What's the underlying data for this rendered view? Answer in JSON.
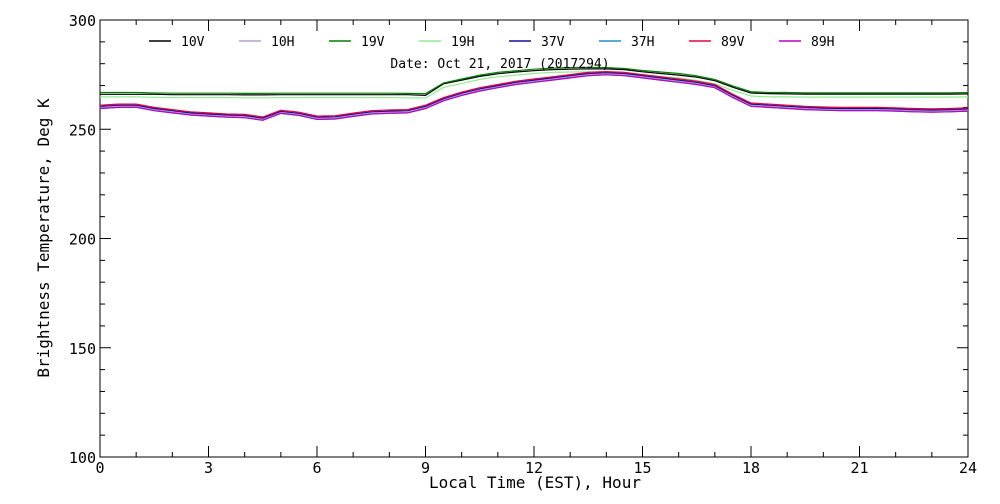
{
  "chart_data": {
    "type": "line",
    "title": "Date: Oct 21, 2017 (2017294)",
    "xlabel": "Local Time (EST), Hour",
    "ylabel": "Brightness Temperature, Deg K",
    "xlim": [
      0,
      24
    ],
    "ylim": [
      100,
      300
    ],
    "x_major_ticks": [
      0,
      3,
      6,
      9,
      12,
      15,
      18,
      21,
      24
    ],
    "y_major_ticks": [
      100,
      150,
      200,
      250,
      300
    ],
    "grid": false,
    "legend_position": "top",
    "x": [
      0,
      0.5,
      1,
      1.5,
      2,
      2.5,
      3,
      3.5,
      4,
      4.5,
      5,
      5.5,
      6,
      6.5,
      7,
      7.5,
      8,
      8.5,
      9,
      9.5,
      10,
      10.5,
      11,
      11.5,
      12,
      12.5,
      13,
      13.5,
      14,
      14.5,
      15,
      15.5,
      16,
      16.5,
      17,
      17.5,
      18,
      18.5,
      19,
      19.5,
      20,
      20.5,
      21,
      21.5,
      22,
      22.5,
      23,
      23.5,
      24
    ],
    "series": [
      {
        "name": "10V",
        "color": "#000000",
        "values": [
          266,
          266,
          266,
          266,
          265.8,
          265.8,
          265.8,
          265.8,
          265.7,
          265.7,
          265.8,
          265.8,
          265.8,
          265.8,
          265.8,
          265.8,
          265.8,
          265.8,
          265.5,
          270.8,
          272.5,
          274.2,
          275.4,
          276.2,
          276.8,
          277.3,
          277.5,
          277.6,
          277.6,
          277.3,
          276.3,
          275.5,
          274.8,
          273.8,
          272.2,
          269.2,
          266.6,
          266.3,
          266.2,
          266.1,
          266.1,
          266.1,
          266.1,
          266.1,
          266.1,
          266.1,
          266.1,
          266.1,
          266.2
        ]
      },
      {
        "name": "10H",
        "color": "#b0a2c8",
        "values": [
          260,
          260.6,
          260.6,
          259,
          258,
          257,
          256.5,
          256,
          255.8,
          254.6,
          257.8,
          256.9,
          255,
          255.2,
          256.4,
          257.5,
          257.8,
          258,
          260,
          263.5,
          266,
          268,
          269.5,
          271,
          272,
          273,
          274,
          275,
          275.4,
          275,
          274,
          273,
          272,
          271,
          269.5,
          265,
          261,
          260.5,
          260,
          259.5,
          259.2,
          259,
          259,
          259,
          258.8,
          258.5,
          258.3,
          258.5,
          258.8
        ]
      },
      {
        "name": "19V",
        "color": "#008000",
        "values": [
          266.8,
          266.8,
          266.8,
          266.6,
          266.5,
          266.5,
          266.5,
          266.5,
          266.4,
          266.4,
          266.5,
          266.5,
          266.5,
          266.5,
          266.5,
          266.5,
          266.5,
          266.4,
          266.3,
          271.2,
          273,
          274.8,
          276,
          276.8,
          277.5,
          278,
          278.2,
          278.3,
          278.2,
          277.8,
          276.9,
          276.2,
          275.5,
          274.4,
          272.8,
          269.8,
          267.2,
          266.8,
          266.8,
          266.7,
          266.7,
          266.7,
          266.7,
          266.7,
          266.7,
          266.7,
          266.7,
          266.7,
          266.8
        ]
      },
      {
        "name": "19H",
        "color": "#90ee90",
        "values": [
          264.8,
          264.8,
          264.8,
          264.6,
          264.5,
          264.5,
          264.5,
          264.5,
          264.4,
          264.4,
          264.5,
          264.5,
          264.5,
          264.5,
          264.5,
          264.5,
          264.5,
          264.4,
          264.3,
          269.2,
          271,
          272.8,
          274,
          274.8,
          275.5,
          276,
          276.2,
          276.3,
          276.2,
          275.8,
          274.9,
          274.2,
          273.5,
          272.4,
          270.8,
          267.8,
          265.2,
          264.8,
          264.8,
          264.7,
          264.7,
          264.7,
          264.7,
          264.7,
          264.7,
          264.7,
          264.7,
          264.7,
          264.8
        ]
      },
      {
        "name": "37V",
        "color": "#1a0aa0",
        "values": [
          260.5,
          261,
          261,
          259.5,
          258.5,
          257.5,
          257,
          256.5,
          256.3,
          255.1,
          258.2,
          257.3,
          255.5,
          255.7,
          256.9,
          258,
          258.3,
          258.5,
          260.5,
          264,
          266.5,
          268.5,
          270,
          271.5,
          272.5,
          273.5,
          274.5,
          275.5,
          275.9,
          275.5,
          274.5,
          273.5,
          272.5,
          271.5,
          270,
          265.5,
          261.5,
          261,
          260.5,
          260,
          259.7,
          259.5,
          259.5,
          259.5,
          259.3,
          259,
          258.8,
          259,
          259.3
        ]
      },
      {
        "name": "37H",
        "color": "#1e90c8",
        "values": [
          259.5,
          260,
          260,
          258.5,
          257.5,
          256.5,
          256,
          255.5,
          255.3,
          254.1,
          257.2,
          256.3,
          254.5,
          254.7,
          255.9,
          257,
          257.3,
          257.5,
          259.5,
          263,
          265.5,
          267.5,
          269,
          270.5,
          271.5,
          272.5,
          273.5,
          274.5,
          274.9,
          274.5,
          273.5,
          272.5,
          271.5,
          270.5,
          269,
          264.5,
          260.5,
          260,
          259.5,
          259,
          258.7,
          258.5,
          258.5,
          258.5,
          258.3,
          258,
          257.8,
          258,
          258.3
        ]
      },
      {
        "name": "89V",
        "color": "#e8003c",
        "values": [
          261,
          261.5,
          261.5,
          260,
          259,
          258,
          257.5,
          257,
          256.8,
          255.6,
          258.7,
          257.8,
          256,
          256.2,
          257.4,
          258.5,
          258.8,
          259,
          261,
          264.5,
          267,
          269,
          270.5,
          272,
          273,
          274,
          275,
          276,
          276.4,
          276,
          275,
          274,
          273,
          272,
          270.5,
          266,
          262,
          261.5,
          261,
          260.5,
          260.2,
          260,
          260,
          260,
          259.8,
          259.5,
          259.3,
          259.5,
          259.8
        ]
      },
      {
        "name": "89H",
        "color": "#c000c0",
        "values": [
          259.5,
          260,
          260.1,
          258.5,
          257.5,
          256.5,
          256,
          255.5,
          255.3,
          254.1,
          257.3,
          256.4,
          254.5,
          254.7,
          255.9,
          257,
          257.3,
          257.5,
          259.5,
          263,
          265.5,
          267.5,
          269,
          270.5,
          271.5,
          272.5,
          273.5,
          274.5,
          274.9,
          274.5,
          273.5,
          272.5,
          271.5,
          270.5,
          269,
          264.5,
          260.5,
          260,
          259.5,
          259,
          258.7,
          258.5,
          258.5,
          258.5,
          258.3,
          258,
          257.8,
          258,
          258.3
        ]
      }
    ]
  }
}
